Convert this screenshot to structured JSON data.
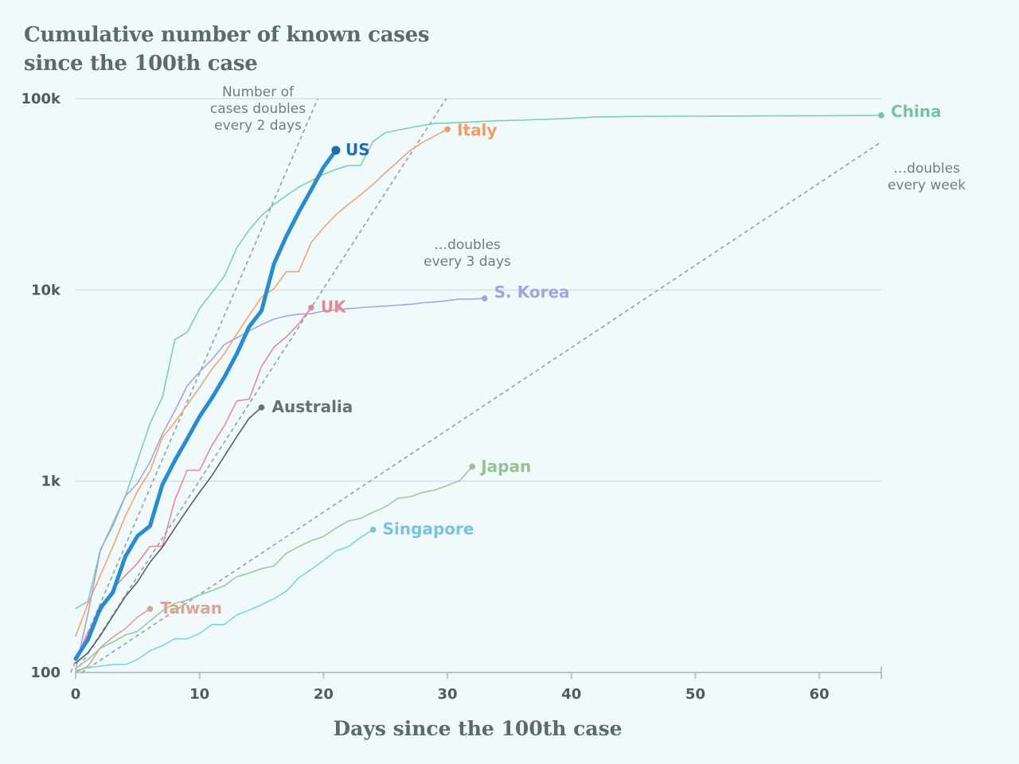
{
  "title": "Cumulative number of known cases since the 100th case",
  "chart_data": {
    "type": "line",
    "title": "Cumulative number of known cases since the 100th case",
    "xlabel": "Days since the 100th case",
    "ylabel": "",
    "xlim": [
      0,
      65
    ],
    "ylim": [
      100,
      100000
    ],
    "y_scale": "log",
    "grid": "horizontal",
    "x_ticks": [
      "0",
      "10",
      "20",
      "30",
      "40",
      "50",
      "60"
    ],
    "y_ticks": [
      {
        "value": 100,
        "label": "100"
      },
      {
        "value": 1000,
        "label": "1k"
      },
      {
        "value": 10000,
        "label": "10k"
      },
      {
        "value": 100000,
        "label": "100k"
      }
    ],
    "annotations": [
      {
        "text": [
          "Number of",
          "cases doubles",
          "every 2 days"
        ]
      },
      {
        "text": [
          "…doubles",
          "every 3 days"
        ]
      },
      {
        "text": [
          "…doubles",
          "every week"
        ]
      }
    ],
    "series": [
      {
        "name": "China",
        "color": "#7dcfb0",
        "width": 1.6,
        "x": [
          0,
          1,
          2,
          3,
          4,
          5,
          6,
          7,
          8,
          9,
          10,
          11,
          12,
          13,
          14,
          15,
          16,
          17,
          18,
          19,
          20,
          21,
          22,
          23,
          24,
          25,
          26,
          27,
          28,
          29,
          30,
          31,
          32,
          33,
          34,
          35,
          36,
          37,
          38,
          39,
          40,
          42,
          45,
          50,
          55,
          60,
          65
        ],
        "y": [
          216,
          235,
          440,
          580,
          830,
          1280,
          2000,
          2750,
          5500,
          6000,
          8000,
          9700,
          11800,
          16600,
          20600,
          24500,
          28000,
          31100,
          34500,
          37200,
          40200,
          42700,
          44700,
          44800,
          59800,
          66500,
          68500,
          70500,
          72500,
          74200,
          74600,
          75100,
          75600,
          76200,
          76700,
          77000,
          77200,
          77700,
          78000,
          78500,
          79000,
          80200,
          80800,
          81000,
          81200,
          81500,
          81800
        ]
      },
      {
        "name": "Italy",
        "color": "#f5a36f",
        "width": 1.6,
        "x": [
          0,
          1,
          2,
          3,
          4,
          5,
          6,
          7,
          8,
          9,
          10,
          11,
          12,
          13,
          14,
          15,
          16,
          17,
          18,
          19,
          20,
          21,
          22,
          23,
          24,
          25,
          26,
          27,
          28,
          29,
          30
        ],
        "y": [
          155,
          229,
          322,
          453,
          655,
          888,
          1128,
          1694,
          2036,
          2502,
          3089,
          3858,
          4636,
          5883,
          7375,
          9172,
          10149,
          12462,
          12462,
          17660,
          21157,
          24747,
          27980,
          31506,
          35713,
          41035,
          47021,
          53578,
          59138,
          63927,
          69176
        ]
      },
      {
        "name": "US",
        "color": "#2a8ccc",
        "width": 5,
        "x": [
          0,
          1,
          2,
          3,
          4,
          5,
          6,
          7,
          8,
          9,
          10,
          11,
          12,
          13,
          14,
          15,
          16,
          17,
          18,
          19,
          20,
          21
        ],
        "y": [
          118,
          149,
          217,
          262,
          402,
          518,
          583,
          959,
          1281,
          1663,
          2179,
          2727,
          3499,
          4632,
          6421,
          7786,
          13680,
          19101,
          25493,
          33276,
          43847,
          53740
        ]
      },
      {
        "name": "S. Korea",
        "color": "#a8a4dc",
        "width": 1.6,
        "x": [
          0,
          1,
          2,
          3,
          4,
          5,
          6,
          7,
          8,
          9,
          10,
          11,
          12,
          13,
          14,
          15,
          16,
          17,
          18,
          19,
          20,
          21,
          22,
          23,
          24,
          25,
          26,
          27,
          28,
          29,
          30,
          31,
          32,
          33
        ],
        "y": [
          104,
          204,
          433,
          602,
          833,
          977,
          1261,
          1766,
          2337,
          3150,
          3736,
          4335,
          5186,
          5621,
          6088,
          6593,
          7041,
          7313,
          7478,
          7513,
          7755,
          7869,
          7979,
          8086,
          8162,
          8236,
          8320,
          8413,
          8565,
          8652,
          8799,
          8961,
          8961,
          9037
        ]
      },
      {
        "name": "UK",
        "color": "#e8879a",
        "width": 1.6,
        "x": [
          0,
          1,
          2,
          3,
          4,
          5,
          6,
          7,
          8,
          9,
          10,
          11,
          12,
          13,
          14,
          15,
          16,
          17,
          18,
          19
        ],
        "y": [
          115,
          163,
          206,
          273,
          321,
          373,
          456,
          456,
          798,
          1140,
          1140,
          1543,
          1950,
          2626,
          2689,
          3983,
          5018,
          5683,
          6650,
          8077
        ]
      },
      {
        "name": "Australia",
        "color": "#5a5f63",
        "width": 1.6,
        "x": [
          0,
          1,
          2,
          3,
          4,
          5,
          6,
          7,
          8,
          9,
          10,
          11,
          12,
          13,
          14,
          15
        ],
        "y": [
          112,
          127,
          156,
          197,
          249,
          298,
          377,
          452,
          568,
          708,
          876,
          1071,
          1352,
          1709,
          2136,
          2431
        ]
      },
      {
        "name": "Japan",
        "color": "#9cca9a",
        "width": 1.6,
        "x": [
          0,
          1,
          2,
          3,
          4,
          5,
          6,
          7,
          8,
          9,
          10,
          11,
          12,
          13,
          14,
          15,
          16,
          17,
          18,
          19,
          20,
          21,
          22,
          23,
          24,
          25,
          26,
          27,
          28,
          29,
          30,
          31,
          32
        ],
        "y": [
          105,
          117,
          134,
          144,
          157,
          164,
          186,
          210,
          230,
          239,
          254,
          268,
          284,
          317,
          331,
          349,
          360,
          420,
          455,
          488,
          514,
          568,
          619,
          639,
          689,
          735,
          814,
          829,
          873,
          900,
          950,
          1007,
          1193
        ]
      },
      {
        "name": "Singapore",
        "color": "#79d4ec",
        "width": 1.6,
        "x": [
          0,
          1,
          2,
          3,
          4,
          5,
          6,
          7,
          8,
          9,
          10,
          11,
          12,
          13,
          14,
          15,
          16,
          17,
          18,
          19,
          20,
          21,
          22,
          23,
          24
        ],
        "y": [
          102,
          106,
          108,
          110,
          110,
          117,
          130,
          138,
          150,
          150,
          160,
          178,
          178,
          200,
          212,
          226,
          243,
          266,
          313,
          345,
          385,
          432,
          455,
          509,
          558
        ]
      },
      {
        "name": "Taiwan",
        "color": "#dba392",
        "width": 1.6,
        "x": [
          0,
          1,
          2,
          3,
          4,
          5,
          6
        ],
        "y": [
          100,
          108,
          135,
          153,
          169,
          195,
          215
        ]
      }
    ],
    "series_label_colors": {
      "China": "#7dbfa6",
      "Italy": "#ef9a68",
      "US": "#1f6ea8",
      "S. Korea": "#a7a2dd",
      "UK": "#e6869a",
      "Australia": "#6a6f72",
      "Japan": "#98c196",
      "Singapore": "#7cc3da",
      "Taiwan": "#d9a597"
    }
  }
}
